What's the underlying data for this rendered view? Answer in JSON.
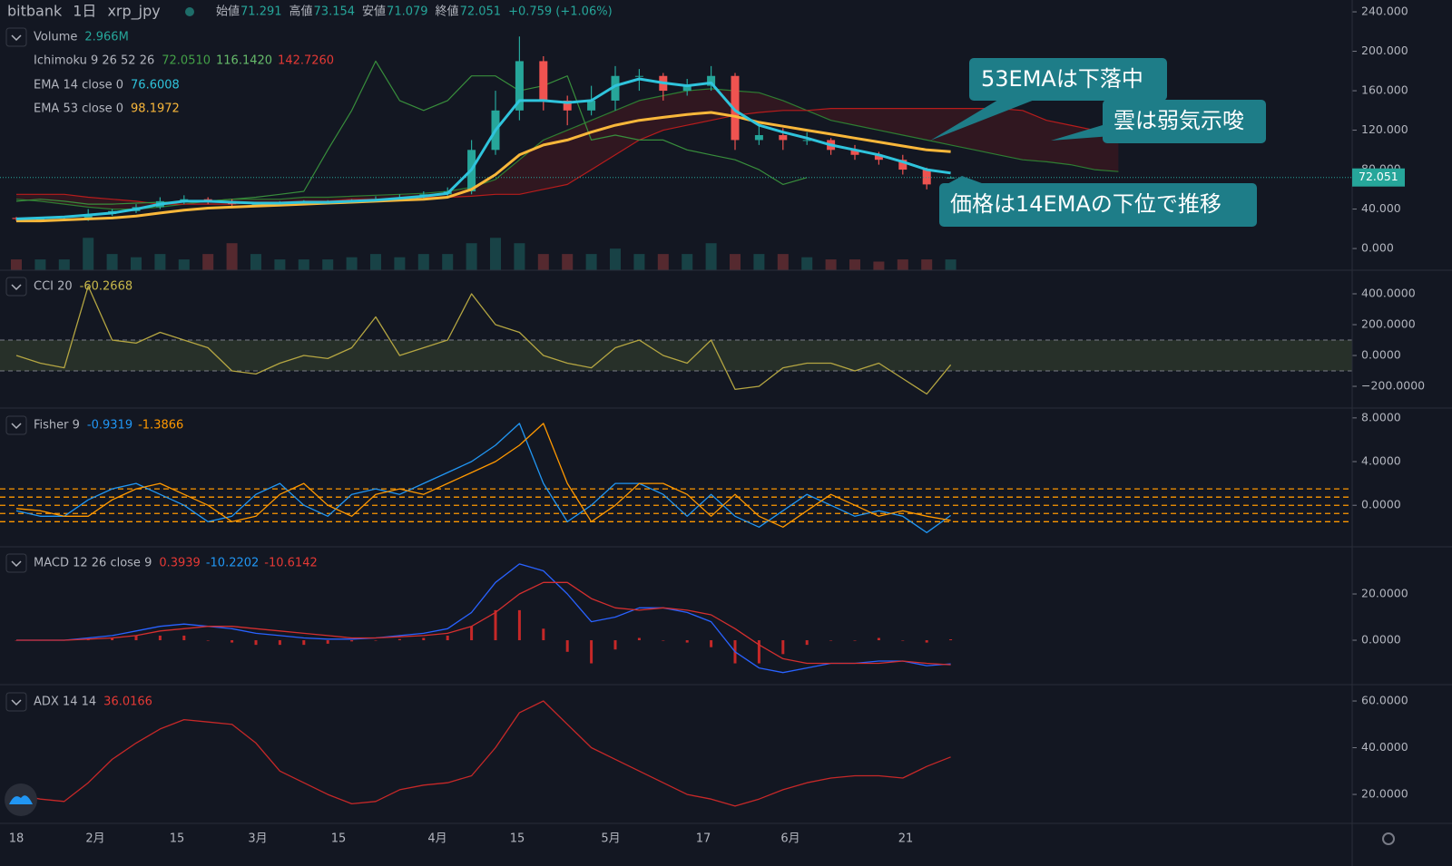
{
  "header": {
    "exchange": "bitbank",
    "interval": "1日",
    "symbol": "xrp_jpy",
    "open_label": "始値",
    "open": "71.291",
    "high_label": "高値",
    "high": "73.154",
    "low_label": "安値",
    "low": "71.079",
    "close_label": "終値",
    "close": "72.051",
    "change": "+0.759 (+1.06%)"
  },
  "x_labels": [
    "18",
    "2月",
    "15",
    "3月",
    "15",
    "4月",
    "15",
    "5月",
    "17",
    "6月",
    "21"
  ],
  "chart_data": [
    {
      "type": "candlestick",
      "open": [
        31,
        30,
        30,
        30,
        35,
        38,
        42,
        48,
        50,
        48,
        45,
        45,
        46,
        47,
        47,
        48,
        50,
        52,
        55,
        58,
        100,
        140,
        190,
        150,
        140,
        150,
        175,
        175,
        160,
        165,
        175,
        110,
        115,
        110,
        110,
        100,
        95,
        90,
        80,
        71.291
      ],
      "high": [
        32,
        32,
        31,
        40,
        40,
        45,
        52,
        54,
        52,
        50,
        47,
        48,
        49,
        49,
        50,
        53,
        55,
        58,
        62,
        110,
        160,
        215,
        195,
        155,
        165,
        185,
        182,
        178,
        172,
        185,
        178,
        125,
        122,
        118,
        112,
        105,
        98,
        95,
        82,
        73.154
      ],
      "low": [
        28,
        28,
        28,
        28,
        33,
        36,
        40,
        45,
        45,
        43,
        43,
        44,
        45,
        45,
        46,
        47,
        49,
        51,
        53,
        55,
        95,
        130,
        140,
        125,
        135,
        140,
        160,
        150,
        155,
        160,
        100,
        105,
        100,
        105,
        95,
        90,
        85,
        75,
        60,
        71.079
      ],
      "close": [
        30,
        30,
        30,
        35,
        38,
        42,
        48,
        50,
        48,
        45,
        45,
        46,
        47,
        47,
        48,
        50,
        52,
        55,
        58,
        100,
        140,
        190,
        150,
        140,
        150,
        175,
        175,
        160,
        165,
        175,
        110,
        115,
        110,
        110,
        100,
        95,
        90,
        80,
        65,
        72.051
      ],
      "up_color": "#26a69a",
      "down_color": "#ef5350",
      "ylim": [
        -22,
        252
      ],
      "yticks": [
        {
          "value": 0,
          "label": "0.000"
        },
        {
          "value": 40,
          "label": "40.000"
        },
        {
          "value": 80,
          "label": "80.000"
        },
        {
          "value": 120,
          "label": "120.000"
        },
        {
          "value": 160,
          "label": "160.000"
        },
        {
          "value": 200,
          "label": "200.000"
        },
        {
          "value": 240,
          "label": "240.000"
        }
      ],
      "y2lim": [
        0,
        25
      ],
      "volume": {
        "axis": "y2",
        "values": [
          1,
          1,
          1,
          3,
          1.5,
          1.2,
          1.5,
          1,
          1.5,
          2.5,
          1.5,
          1,
          1,
          1,
          1.2,
          1.5,
          1.2,
          1.5,
          1.5,
          2.5,
          3,
          2.5,
          1.5,
          1.5,
          1.5,
          2,
          1.5,
          1.5,
          1.5,
          2.5,
          1.5,
          1.5,
          1.5,
          1.2,
          1,
          1,
          0.8,
          1,
          1,
          1
        ]
      },
      "ichimoku": {
        "span_a": {
          "color": "#2e7d32",
          "values": [
            50,
            48,
            45,
            42,
            40,
            40,
            42,
            45,
            48,
            50,
            50,
            50,
            52,
            52,
            53,
            54,
            55,
            56,
            58,
            62,
            70,
            90,
            110,
            120,
            130,
            140,
            150,
            155,
            160,
            162,
            160,
            158,
            150,
            140,
            130,
            125,
            120,
            115,
            110,
            105,
            100,
            95,
            90,
            88,
            85,
            80,
            78
          ]
        },
        "span_b": {
          "color": "#b71c1c",
          "values": [
            55,
            55,
            55,
            52,
            50,
            48,
            45,
            45,
            45,
            45,
            47,
            47,
            48,
            48,
            50,
            50,
            50,
            52,
            52,
            53,
            55,
            55,
            60,
            65,
            80,
            95,
            110,
            120,
            125,
            130,
            135,
            138,
            140,
            140,
            142,
            142,
            142,
            142,
            142,
            142,
            142,
            142,
            140,
            130,
            125,
            120,
            118
          ]
        },
        "lagging": {
          "color": "#388e3c",
          "values": [
            48,
            50,
            48,
            45,
            45,
            46,
            47,
            47,
            48,
            50,
            52,
            55,
            58,
            100,
            140,
            190,
            150,
            140,
            150,
            175,
            175,
            160,
            165,
            175,
            110,
            115,
            110,
            110,
            100,
            95,
            90,
            80,
            65,
            72,
            null,
            null,
            null,
            null,
            null,
            null
          ]
        }
      },
      "series": [
        {
          "color": "#f9b73a",
          "values": [
            28,
            28,
            29,
            30,
            31,
            33,
            36,
            39,
            41,
            42,
            43,
            44,
            45,
            46,
            47,
            48,
            49,
            50,
            52,
            60,
            75,
            95,
            105,
            110,
            118,
            125,
            130,
            133,
            136,
            138,
            134,
            128,
            124,
            120,
            116,
            112,
            108,
            104,
            100,
            98.1972
          ]
        },
        {
          "color": "#2fc4dc",
          "values": [
            30,
            31,
            32,
            34,
            36,
            40,
            45,
            48,
            48,
            47,
            46,
            46,
            47,
            47,
            48,
            49,
            51,
            53,
            56,
            80,
            120,
            150,
            150,
            148,
            150,
            165,
            172,
            168,
            165,
            168,
            140,
            125,
            118,
            112,
            105,
            100,
            95,
            88,
            80,
            76.6008
          ]
        }
      ],
      "legend": [
        {
          "label": "Volume",
          "values": [
            "2.966M"
          ],
          "colors": [
            "#26a69a"
          ]
        },
        {
          "label": "Ichimoku 9 26 52 26",
          "values": [
            "72.0510",
            "116.1420",
            "142.7260"
          ],
          "colors": [
            "#43a047",
            "#66bb6a",
            "#e53935"
          ]
        },
        {
          "label": "EMA 14 close 0",
          "values": [
            "76.6008"
          ],
          "colors": [
            "#2fc4dc"
          ]
        },
        {
          "label": "EMA 53 close 0",
          "values": [
            "98.1972"
          ],
          "colors": [
            "#f9b73a"
          ]
        }
      ],
      "annotations": [
        "53EMAは下落中",
        "雲は弱気示唆",
        "価格は14EMAの下位で推移"
      ]
    },
    {
      "type": "line",
      "ylim": [
        -341,
        553
      ],
      "yticks": [
        {
          "value": -200,
          "label": "−200.0000"
        },
        {
          "value": 0,
          "label": "0.0000"
        },
        {
          "value": 200,
          "label": "200.0000"
        },
        {
          "value": 400,
          "label": "400.0000"
        }
      ],
      "band": [
        -100,
        100
      ],
      "band_color": "#3b4a2f",
      "series": [
        {
          "color": "#b5a642",
          "values": [
            0,
            -50,
            -80,
            450,
            100,
            80,
            150,
            100,
            50,
            -100,
            -120,
            -50,
            0,
            -20,
            50,
            250,
            0,
            50,
            100,
            400,
            200,
            150,
            0,
            -50,
            -80,
            50,
            100,
            0,
            -50,
            100,
            -220,
            -200,
            -80,
            -50,
            -50,
            -100,
            -50,
            -150,
            -250,
            -60.2668
          ]
        }
      ],
      "legend": [
        {
          "label": "CCI 20",
          "values": [
            "-60.2668"
          ],
          "colors": [
            "#c8b84a"
          ]
        }
      ]
    },
    {
      "type": "line",
      "ylim": [
        -3.8,
        8.9
      ],
      "yticks": [
        {
          "value": 0,
          "label": "0.0000"
        },
        {
          "value": 4,
          "label": "4.0000"
        },
        {
          "value": 8,
          "label": "8.0000"
        }
      ],
      "levels": [
        1.5,
        0.75,
        0,
        -0.75,
        -1.5
      ],
      "level_color": "#ff9800",
      "series": [
        {
          "color": "#2196f3",
          "values": [
            -0.5,
            -1,
            -1,
            0.5,
            1.5,
            2,
            1,
            0,
            -1.5,
            -1,
            1,
            2,
            0,
            -1,
            1,
            1.5,
            1,
            2,
            3,
            4,
            5.5,
            7.5,
            2,
            -1.5,
            0,
            2,
            2,
            1,
            -1,
            1,
            -1,
            -2,
            -0.5,
            1,
            0,
            -1,
            -0.5,
            -1,
            -2.5,
            -0.9319
          ]
        },
        {
          "color": "#ff9800",
          "values": [
            -0.3,
            -0.5,
            -1,
            -1,
            0.5,
            1.5,
            2,
            1,
            0,
            -1.5,
            -1,
            1,
            2,
            0,
            -1,
            1,
            1.5,
            1,
            2,
            3,
            4,
            5.5,
            7.5,
            2,
            -1.5,
            0,
            2,
            2,
            1,
            -1,
            1,
            -1,
            -2,
            -0.5,
            1,
            0,
            -1,
            -0.5,
            -1,
            -1.3866
          ]
        }
      ],
      "legend": [
        {
          "label": "Fisher 9",
          "values": [
            "-0.9319",
            "-1.3866"
          ],
          "colors": [
            "#2196f3",
            "#ff9800"
          ]
        }
      ]
    },
    {
      "type": "line",
      "ylim": [
        -19.2,
        40.4
      ],
      "yticks": [
        {
          "value": 0,
          "label": "0.0000"
        },
        {
          "value": 20,
          "label": "20.0000"
        }
      ],
      "histogram": {
        "color": "#c62828",
        "values": [
          0,
          0,
          0,
          0.5,
          1,
          2,
          2,
          2,
          0,
          -1,
          -2,
          -2,
          -2,
          -1.5,
          -0.5,
          0,
          0.5,
          1,
          2,
          6,
          13,
          13,
          5,
          -5,
          -10,
          -4,
          1,
          0,
          -1,
          -3,
          -10,
          -10,
          -6,
          -2,
          0,
          0,
          1,
          0,
          -1,
          0.3939
        ]
      },
      "series": [
        {
          "color": "#2962ff",
          "values": [
            0,
            0,
            0,
            1,
            2,
            4,
            6,
            7,
            6,
            5,
            3,
            2,
            1,
            0.5,
            0.5,
            1,
            2,
            3,
            5,
            12,
            25,
            33,
            30,
            20,
            8,
            10,
            14,
            14,
            12,
            8,
            -5,
            -12,
            -14,
            -12,
            -10,
            -10,
            -9,
            -9,
            -11,
            -10.2202
          ]
        },
        {
          "color": "#d32f2f",
          "values": [
            0,
            0,
            0,
            0.5,
            1,
            2,
            4,
            5,
            6,
            6,
            5,
            4,
            3,
            2,
            1,
            1,
            1.5,
            2,
            3,
            6,
            12,
            20,
            25,
            25,
            18,
            14,
            13,
            14,
            13,
            11,
            5,
            -2,
            -8,
            -10,
            -10,
            -10,
            -10,
            -9,
            -10,
            -10.6142
          ]
        }
      ],
      "legend": [
        {
          "label": "MACD 12 26 close 9",
          "values": [
            "0.3939",
            "-10.2202",
            "-10.6142"
          ],
          "colors": [
            "#e53935",
            "#2196f3",
            "#e53935"
          ]
        }
      ]
    },
    {
      "type": "line",
      "ylim": [
        7.6,
        67
      ],
      "yticks": [
        {
          "value": 20,
          "label": "20.0000"
        },
        {
          "value": 40,
          "label": "40.0000"
        },
        {
          "value": 60,
          "label": "60.0000"
        }
      ],
      "series": [
        {
          "color": "#c62828",
          "values": [
            20,
            18,
            17,
            25,
            35,
            42,
            48,
            52,
            51,
            50,
            42,
            30,
            25,
            20,
            16,
            17,
            22,
            24,
            25,
            28,
            40,
            55,
            60,
            50,
            40,
            35,
            30,
            25,
            20,
            18,
            15,
            18,
            22,
            25,
            27,
            28,
            28,
            27,
            32,
            36.0166
          ]
        }
      ],
      "legend": [
        {
          "label": "ADX 14 14",
          "values": [
            "36.0166"
          ],
          "colors": [
            "#e53935"
          ]
        }
      ]
    }
  ]
}
